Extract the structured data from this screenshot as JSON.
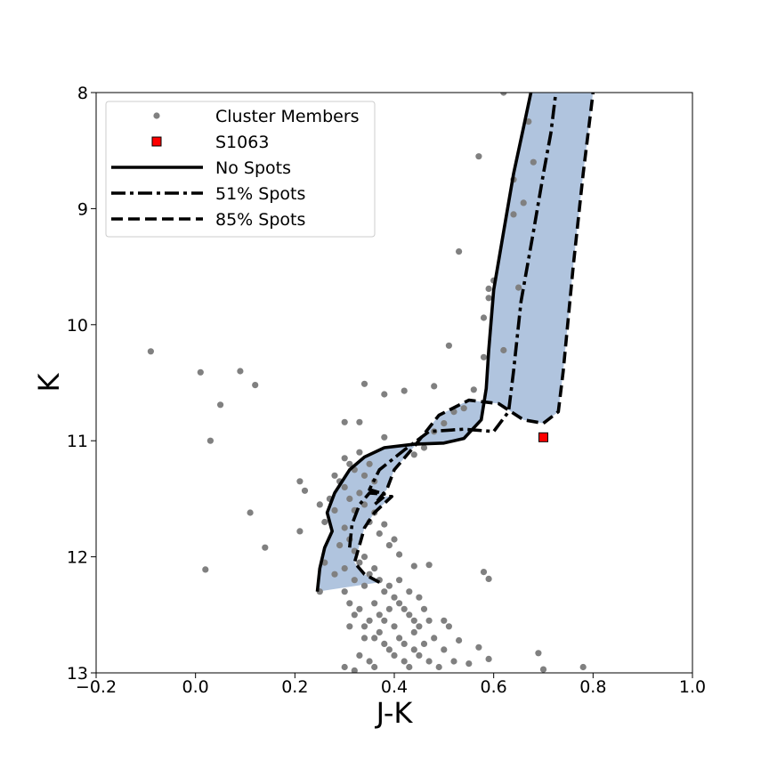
{
  "chart_data": {
    "type": "scatter",
    "title": "",
    "xlabel": "J-K",
    "ylabel": "K",
    "xlim": [
      -0.2,
      1.0
    ],
    "ylim": [
      13,
      8
    ],
    "y_inverted": true,
    "xticks": [
      -0.2,
      0.0,
      0.2,
      0.4,
      0.6,
      0.8,
      1.0
    ],
    "xtick_labels": [
      "−0.2",
      "0.0",
      "0.2",
      "0.4",
      "0.6",
      "0.8",
      "1.0"
    ],
    "yticks": [
      8,
      9,
      10,
      11,
      12,
      13
    ],
    "ytick_labels": [
      "8",
      "9",
      "10",
      "11",
      "12",
      "13"
    ],
    "grid": false,
    "legend_position": "top-left",
    "colors": {
      "members": "#808080",
      "target": "#ff0000",
      "band": "#b0c4de",
      "lines": "#000000"
    },
    "series": [
      {
        "name": "Cluster Members",
        "kind": "scatter",
        "points": [
          [
            -0.09,
            10.23
          ],
          [
            0.01,
            10.41
          ],
          [
            0.09,
            10.4
          ],
          [
            0.12,
            10.52
          ],
          [
            0.05,
            10.69
          ],
          [
            0.03,
            11.0
          ],
          [
            0.02,
            12.11
          ],
          [
            0.11,
            11.62
          ],
          [
            0.14,
            11.92
          ],
          [
            0.21,
            11.35
          ],
          [
            0.22,
            11.43
          ],
          [
            0.21,
            11.78
          ],
          [
            0.25,
            11.55
          ],
          [
            0.27,
            11.5
          ],
          [
            0.26,
            11.7
          ],
          [
            0.26,
            12.05
          ],
          [
            0.25,
            12.3
          ],
          [
            0.28,
            12.15
          ],
          [
            0.28,
            11.3
          ],
          [
            0.3,
            10.84
          ],
          [
            0.33,
            10.84
          ],
          [
            0.34,
            10.51
          ],
          [
            0.38,
            10.6
          ],
          [
            0.38,
            10.97
          ],
          [
            0.42,
            10.57
          ],
          [
            0.48,
            10.53
          ],
          [
            0.44,
            11.12
          ],
          [
            0.46,
            11.06
          ],
          [
            0.48,
            10.92
          ],
          [
            0.5,
            10.85
          ],
          [
            0.52,
            10.75
          ],
          [
            0.54,
            10.72
          ],
          [
            0.56,
            10.56
          ],
          [
            0.53,
            9.37
          ],
          [
            0.51,
            10.18
          ],
          [
            0.57,
            8.55
          ],
          [
            0.58,
            10.28
          ],
          [
            0.58,
            9.94
          ],
          [
            0.59,
            9.69
          ],
          [
            0.59,
            9.77
          ],
          [
            0.6,
            9.62
          ],
          [
            0.62,
            10.22
          ],
          [
            0.62,
            8.0
          ],
          [
            0.64,
            9.05
          ],
          [
            0.64,
            8.75
          ],
          [
            0.65,
            9.68
          ],
          [
            0.66,
            8.95
          ],
          [
            0.67,
            8.25
          ],
          [
            0.68,
            8.6
          ],
          [
            0.58,
            12.13
          ],
          [
            0.59,
            12.19
          ],
          [
            0.47,
            12.07
          ],
          [
            0.44,
            12.08
          ],
          [
            0.3,
            11.15
          ],
          [
            0.31,
            11.2
          ],
          [
            0.32,
            11.25
          ],
          [
            0.33,
            11.1
          ],
          [
            0.34,
            11.3
          ],
          [
            0.35,
            11.2
          ],
          [
            0.36,
            11.35
          ],
          [
            0.3,
            11.4
          ],
          [
            0.31,
            11.5
          ],
          [
            0.32,
            11.6
          ],
          [
            0.33,
            11.45
          ],
          [
            0.34,
            11.55
          ],
          [
            0.35,
            11.7
          ],
          [
            0.36,
            11.62
          ],
          [
            0.37,
            11.8
          ],
          [
            0.38,
            11.72
          ],
          [
            0.39,
            11.9
          ],
          [
            0.4,
            11.85
          ],
          [
            0.41,
            11.98
          ],
          [
            0.3,
            11.75
          ],
          [
            0.31,
            11.85
          ],
          [
            0.32,
            11.95
          ],
          [
            0.33,
            12.05
          ],
          [
            0.34,
            12.0
          ],
          [
            0.35,
            12.15
          ],
          [
            0.36,
            12.1
          ],
          [
            0.37,
            12.2
          ],
          [
            0.38,
            12.3
          ],
          [
            0.39,
            12.25
          ],
          [
            0.4,
            12.35
          ],
          [
            0.41,
            12.4
          ],
          [
            0.42,
            12.45
          ],
          [
            0.43,
            12.5
          ],
          [
            0.44,
            12.55
          ],
          [
            0.45,
            12.6
          ],
          [
            0.3,
            12.3
          ],
          [
            0.31,
            12.4
          ],
          [
            0.32,
            12.5
          ],
          [
            0.33,
            12.45
          ],
          [
            0.34,
            12.6
          ],
          [
            0.35,
            12.55
          ],
          [
            0.36,
            12.7
          ],
          [
            0.37,
            12.65
          ],
          [
            0.38,
            12.75
          ],
          [
            0.39,
            12.8
          ],
          [
            0.4,
            12.85
          ],
          [
            0.41,
            12.7
          ],
          [
            0.42,
            12.9
          ],
          [
            0.43,
            12.95
          ],
          [
            0.44,
            12.8
          ],
          [
            0.45,
            12.85
          ],
          [
            0.46,
            12.75
          ],
          [
            0.47,
            12.9
          ],
          [
            0.48,
            12.7
          ],
          [
            0.49,
            12.95
          ],
          [
            0.5,
            12.8
          ],
          [
            0.51,
            12.6
          ],
          [
            0.52,
            12.9
          ],
          [
            0.53,
            12.72
          ],
          [
            0.3,
            12.95
          ],
          [
            0.32,
            12.98
          ],
          [
            0.34,
            12.7
          ],
          [
            0.35,
            12.9
          ],
          [
            0.31,
            12.6
          ],
          [
            0.33,
            12.85
          ],
          [
            0.36,
            12.95
          ],
          [
            0.38,
            12.55
          ],
          [
            0.4,
            12.6
          ],
          [
            0.42,
            12.75
          ],
          [
            0.44,
            12.65
          ],
          [
            0.46,
            12.45
          ],
          [
            0.47,
            12.55
          ],
          [
            0.5,
            12.55
          ],
          [
            0.55,
            12.92
          ],
          [
            0.57,
            12.78
          ],
          [
            0.59,
            12.88
          ],
          [
            0.69,
            12.83
          ],
          [
            0.7,
            12.97
          ],
          [
            0.78,
            12.95
          ],
          [
            0.29,
            11.35
          ],
          [
            0.28,
            11.6
          ],
          [
            0.29,
            11.9
          ],
          [
            0.3,
            12.1
          ],
          [
            0.32,
            12.2
          ],
          [
            0.34,
            12.25
          ],
          [
            0.36,
            12.4
          ],
          [
            0.37,
            12.5
          ],
          [
            0.39,
            12.45
          ],
          [
            0.41,
            12.2
          ],
          [
            0.43,
            12.3
          ],
          [
            0.45,
            12.35
          ]
        ]
      },
      {
        "name": "S1063",
        "kind": "marker",
        "points": [
          [
            0.7,
            10.97
          ]
        ]
      },
      {
        "name": "No Spots",
        "kind": "line",
        "points": [
          [
            0.245,
            12.3
          ],
          [
            0.25,
            12.1
          ],
          [
            0.26,
            11.92
          ],
          [
            0.275,
            11.78
          ],
          [
            0.265,
            11.62
          ],
          [
            0.28,
            11.45
          ],
          [
            0.31,
            11.25
          ],
          [
            0.34,
            11.14
          ],
          [
            0.38,
            11.06
          ],
          [
            0.44,
            11.03
          ],
          [
            0.5,
            11.02
          ],
          [
            0.54,
            10.98
          ],
          [
            0.575,
            10.82
          ],
          [
            0.585,
            10.55
          ],
          [
            0.59,
            10.22
          ],
          [
            0.6,
            9.7
          ],
          [
            0.62,
            9.2
          ],
          [
            0.64,
            8.7
          ],
          [
            0.66,
            8.3
          ],
          [
            0.675,
            8.0
          ]
        ]
      },
      {
        "name": "51% Spots",
        "kind": "line",
        "points": [
          [
            0.31,
            11.92
          ],
          [
            0.315,
            11.72
          ],
          [
            0.33,
            11.55
          ],
          [
            0.35,
            11.45
          ],
          [
            0.38,
            11.46
          ],
          [
            0.35,
            11.42
          ],
          [
            0.37,
            11.25
          ],
          [
            0.42,
            11.08
          ],
          [
            0.47,
            10.92
          ],
          [
            0.54,
            10.9
          ],
          [
            0.6,
            10.92
          ],
          [
            0.63,
            10.75
          ],
          [
            0.64,
            10.4
          ],
          [
            0.655,
            9.8
          ],
          [
            0.68,
            9.2
          ],
          [
            0.7,
            8.7
          ],
          [
            0.715,
            8.35
          ],
          [
            0.725,
            8.0
          ]
        ]
      },
      {
        "name": "85% Spots",
        "kind": "line",
        "points": [
          [
            0.37,
            12.22
          ],
          [
            0.34,
            12.15
          ],
          [
            0.32,
            12.05
          ],
          [
            0.33,
            11.9
          ],
          [
            0.34,
            11.75
          ],
          [
            0.36,
            11.62
          ],
          [
            0.385,
            11.52
          ],
          [
            0.395,
            11.48
          ],
          [
            0.38,
            11.48
          ],
          [
            0.36,
            11.55
          ],
          [
            0.385,
            11.42
          ],
          [
            0.4,
            11.25
          ],
          [
            0.44,
            11.05
          ],
          [
            0.49,
            10.78
          ],
          [
            0.55,
            10.65
          ],
          [
            0.61,
            10.68
          ],
          [
            0.66,
            10.82
          ],
          [
            0.7,
            10.85
          ],
          [
            0.73,
            10.75
          ],
          [
            0.74,
            10.4
          ],
          [
            0.76,
            9.5
          ],
          [
            0.78,
            8.7
          ],
          [
            0.8,
            8.0
          ]
        ]
      }
    ]
  }
}
